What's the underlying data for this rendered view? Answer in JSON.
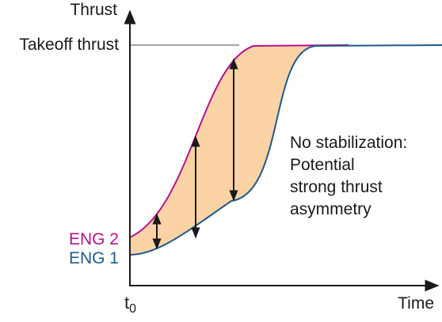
{
  "axes": {
    "y_label": "Thrust",
    "x_label": "Time",
    "x_origin_label_main": "t",
    "x_origin_label_sub": "0"
  },
  "reference": {
    "label": "Takeoff thrust"
  },
  "engines": [
    {
      "name": "ENG 2",
      "color": "#b5128a"
    },
    {
      "name": "ENG 1",
      "color": "#1d5a8e"
    }
  ],
  "annotation": {
    "lines": [
      "No stabilization:",
      "Potential",
      "strong thrust",
      "asymmetry"
    ]
  },
  "colors": {
    "axis": "#1a1a1a",
    "reference_line": "#a6a6a6",
    "asymmetry_fill": "#fbd3a4",
    "arrow": "#1a1a1a",
    "text": "#1a1a1a"
  },
  "icons": {
    "arrow_style": "double-headed-arrow-icon"
  }
}
